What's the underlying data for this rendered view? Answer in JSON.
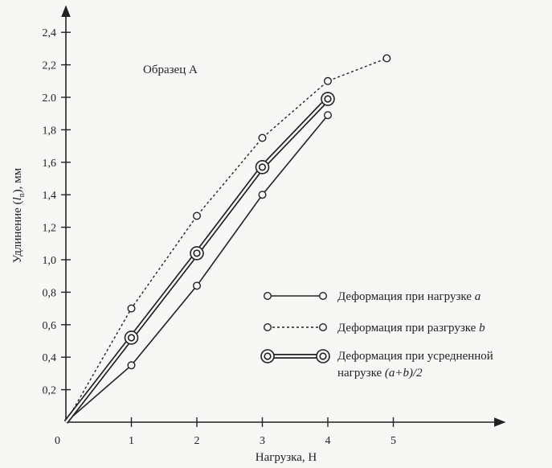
{
  "chart_data": {
    "type": "line",
    "title": "",
    "annotation": "Образец А",
    "xlabel": "Нагрузка,  Н",
    "ylabel": "Удлинение (l_n), мм",
    "ylabel_parts": {
      "pre": "Удлинение (",
      "l": "l",
      "sub": "n",
      "post": "), мм"
    },
    "origin_label": "0",
    "xlim": [
      0,
      6.7
    ],
    "ylim": [
      0,
      2.55
    ],
    "x_ticks": [
      1,
      2,
      3,
      4,
      5
    ],
    "x_tick_labels": [
      "1",
      "2",
      "3",
      "4",
      "5"
    ],
    "y_ticks": [
      0.2,
      0.4,
      0.6,
      0.8,
      1.0,
      1.2,
      1.4,
      1.6,
      1.8,
      2.0,
      2.2,
      2.4
    ],
    "y_tick_labels": [
      "0,2",
      "0,4",
      "0,6",
      "0,8",
      "1,0",
      "1,2",
      "1,4",
      "1,6",
      "1,8",
      "2.0",
      "2,2",
      "2,4"
    ],
    "grid": false,
    "legend_position": "right",
    "series": [
      {
        "key": "load",
        "name": "Деформация при нагрузке",
        "name_suffix": "a",
        "style": "solid",
        "marker": "circle",
        "x": [
          0,
          1,
          2,
          3,
          4
        ],
        "y": [
          0,
          0.35,
          0.84,
          1.4,
          1.89
        ]
      },
      {
        "key": "unload",
        "name": "Деформация при разгрузке",
        "name_suffix": "b",
        "style": "dotted",
        "marker": "circle",
        "x": [
          0,
          1,
          2,
          3,
          4,
          4.9
        ],
        "y": [
          0,
          0.7,
          1.27,
          1.75,
          2.1,
          2.24
        ]
      },
      {
        "key": "avg",
        "name": "Деформация при усредненной",
        "name_line2": "нагрузке",
        "name_suffix": "(a+b)/2",
        "style": "double",
        "marker": "double-circle",
        "x": [
          0,
          1,
          2,
          3,
          4
        ],
        "y": [
          0,
          0.52,
          1.04,
          1.57,
          1.99
        ]
      }
    ]
  }
}
